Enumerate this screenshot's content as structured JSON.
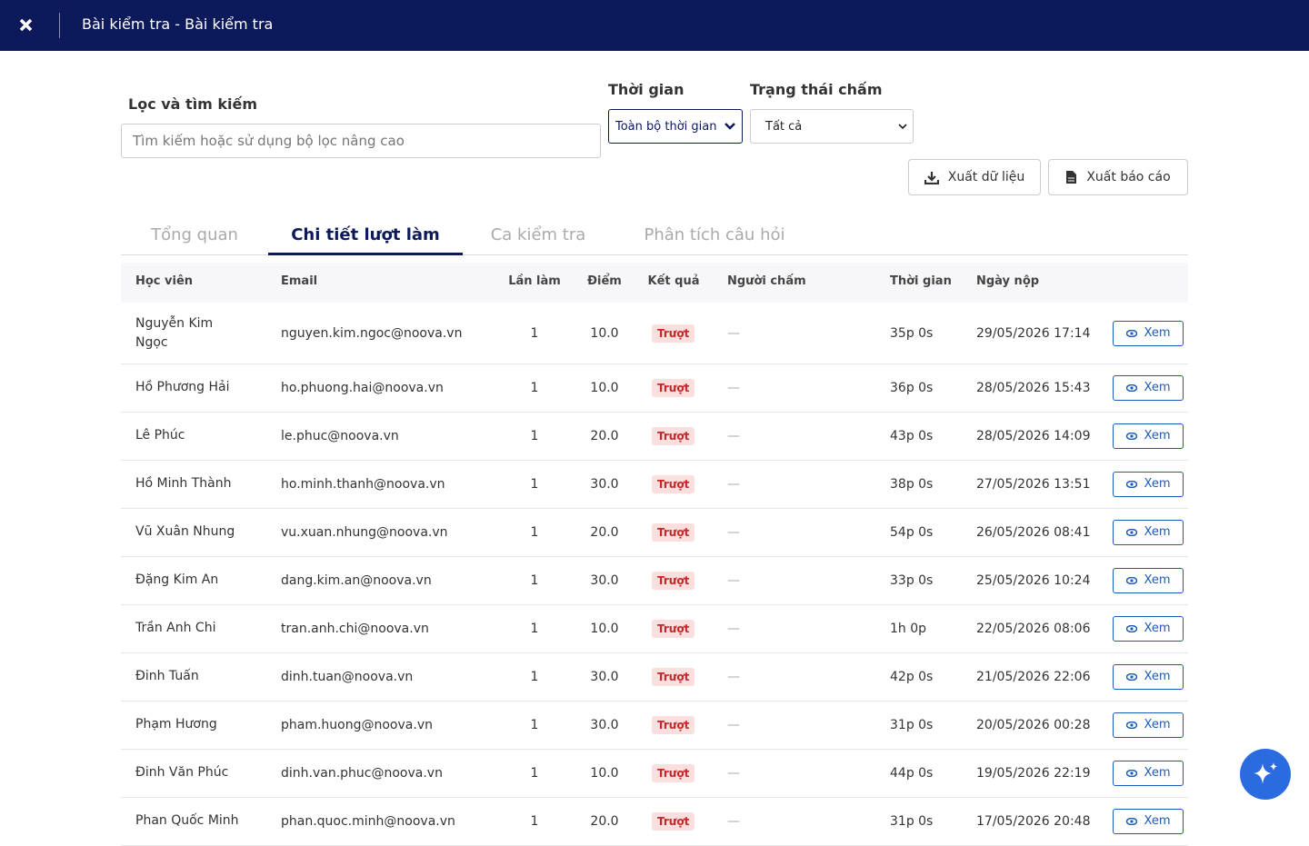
{
  "header": {
    "title": "Bài kiểm tra - Bài kiểm tra"
  },
  "filters": {
    "search_label": "Lọc và tìm kiếm",
    "search_placeholder": "Tìm kiếm hoặc sử dụng bộ lọc nâng cao",
    "time_label": "Thời gian",
    "time_value": "Toàn bộ thời gian",
    "status_label": "Trạng thái chấm",
    "status_value": "Tất cả"
  },
  "actions": [
    "Xuất dữ liệu",
    "Xuất báo cáo"
  ],
  "tabs": [
    {
      "label": "Tổng quan",
      "active": false
    },
    {
      "label": "Chi tiết lượt làm",
      "active": true
    },
    {
      "label": "Ca kiểm tra",
      "active": false
    },
    {
      "label": "Phân tích câu hỏi",
      "active": false
    }
  ],
  "table": {
    "columns": [
      "Học viên",
      "Email",
      "Lần làm",
      "Điểm",
      "Kết quả",
      "Người chấm",
      "Thời gian",
      "Ngày nộp"
    ],
    "rows": [
      [
        "Nguyễn Kim Ngọc",
        "nguyen.kim.ngoc@noova.vn",
        "1",
        "10.0",
        "Trượt",
        "—",
        "35p 0s",
        "29/05/2026 17:14",
        "Xem"
      ],
      [
        "Hồ Phương Hải",
        "ho.phuong.hai@noova.vn",
        "1",
        "10.0",
        "Trượt",
        "—",
        "36p 0s",
        "28/05/2026 15:43",
        "Xem"
      ],
      [
        "Lê Phúc",
        "le.phuc@noova.vn",
        "1",
        "20.0",
        "Trượt",
        "—",
        "43p 0s",
        "28/05/2026 14:09",
        "Xem"
      ],
      [
        "Hồ Minh Thành",
        "ho.minh.thanh@noova.vn",
        "1",
        "30.0",
        "Trượt",
        "—",
        "38p 0s",
        "27/05/2026 13:51",
        "Xem"
      ],
      [
        "Vũ Xuân Nhung",
        "vu.xuan.nhung@noova.vn",
        "1",
        "20.0",
        "Trượt",
        "—",
        "54p 0s",
        "26/05/2026 08:41",
        "Xem"
      ],
      [
        "Đặng Kim An",
        "dang.kim.an@noova.vn",
        "1",
        "30.0",
        "Trượt",
        "—",
        "33p 0s",
        "25/05/2026 10:24",
        "Xem"
      ],
      [
        "Trần Anh Chi",
        "tran.anh.chi@noova.vn",
        "1",
        "10.0",
        "Trượt",
        "—",
        "1h 0p",
        "22/05/2026 08:06",
        "Xem"
      ],
      [
        "Đinh Tuấn",
        "dinh.tuan@noova.vn",
        "1",
        "30.0",
        "Trượt",
        "—",
        "42p 0s",
        "21/05/2026 22:06",
        "Xem"
      ],
      [
        "Phạm Hương",
        "pham.huong@noova.vn",
        "1",
        "30.0",
        "Trượt",
        "—",
        "31p 0s",
        "20/05/2026 00:28",
        "Xem"
      ],
      [
        "Đinh Văn Phúc",
        "dinh.van.phuc@noova.vn",
        "1",
        "10.0",
        "Trượt",
        "—",
        "44p 0s",
        "19/05/2026 22:19",
        "Xem"
      ],
      [
        "Phan Quốc Minh",
        "phan.quoc.minh@noova.vn",
        "1",
        "20.0",
        "Trượt",
        "—",
        "31p 0s",
        "17/05/2026 20:48",
        "Xem"
      ]
    ]
  }
}
